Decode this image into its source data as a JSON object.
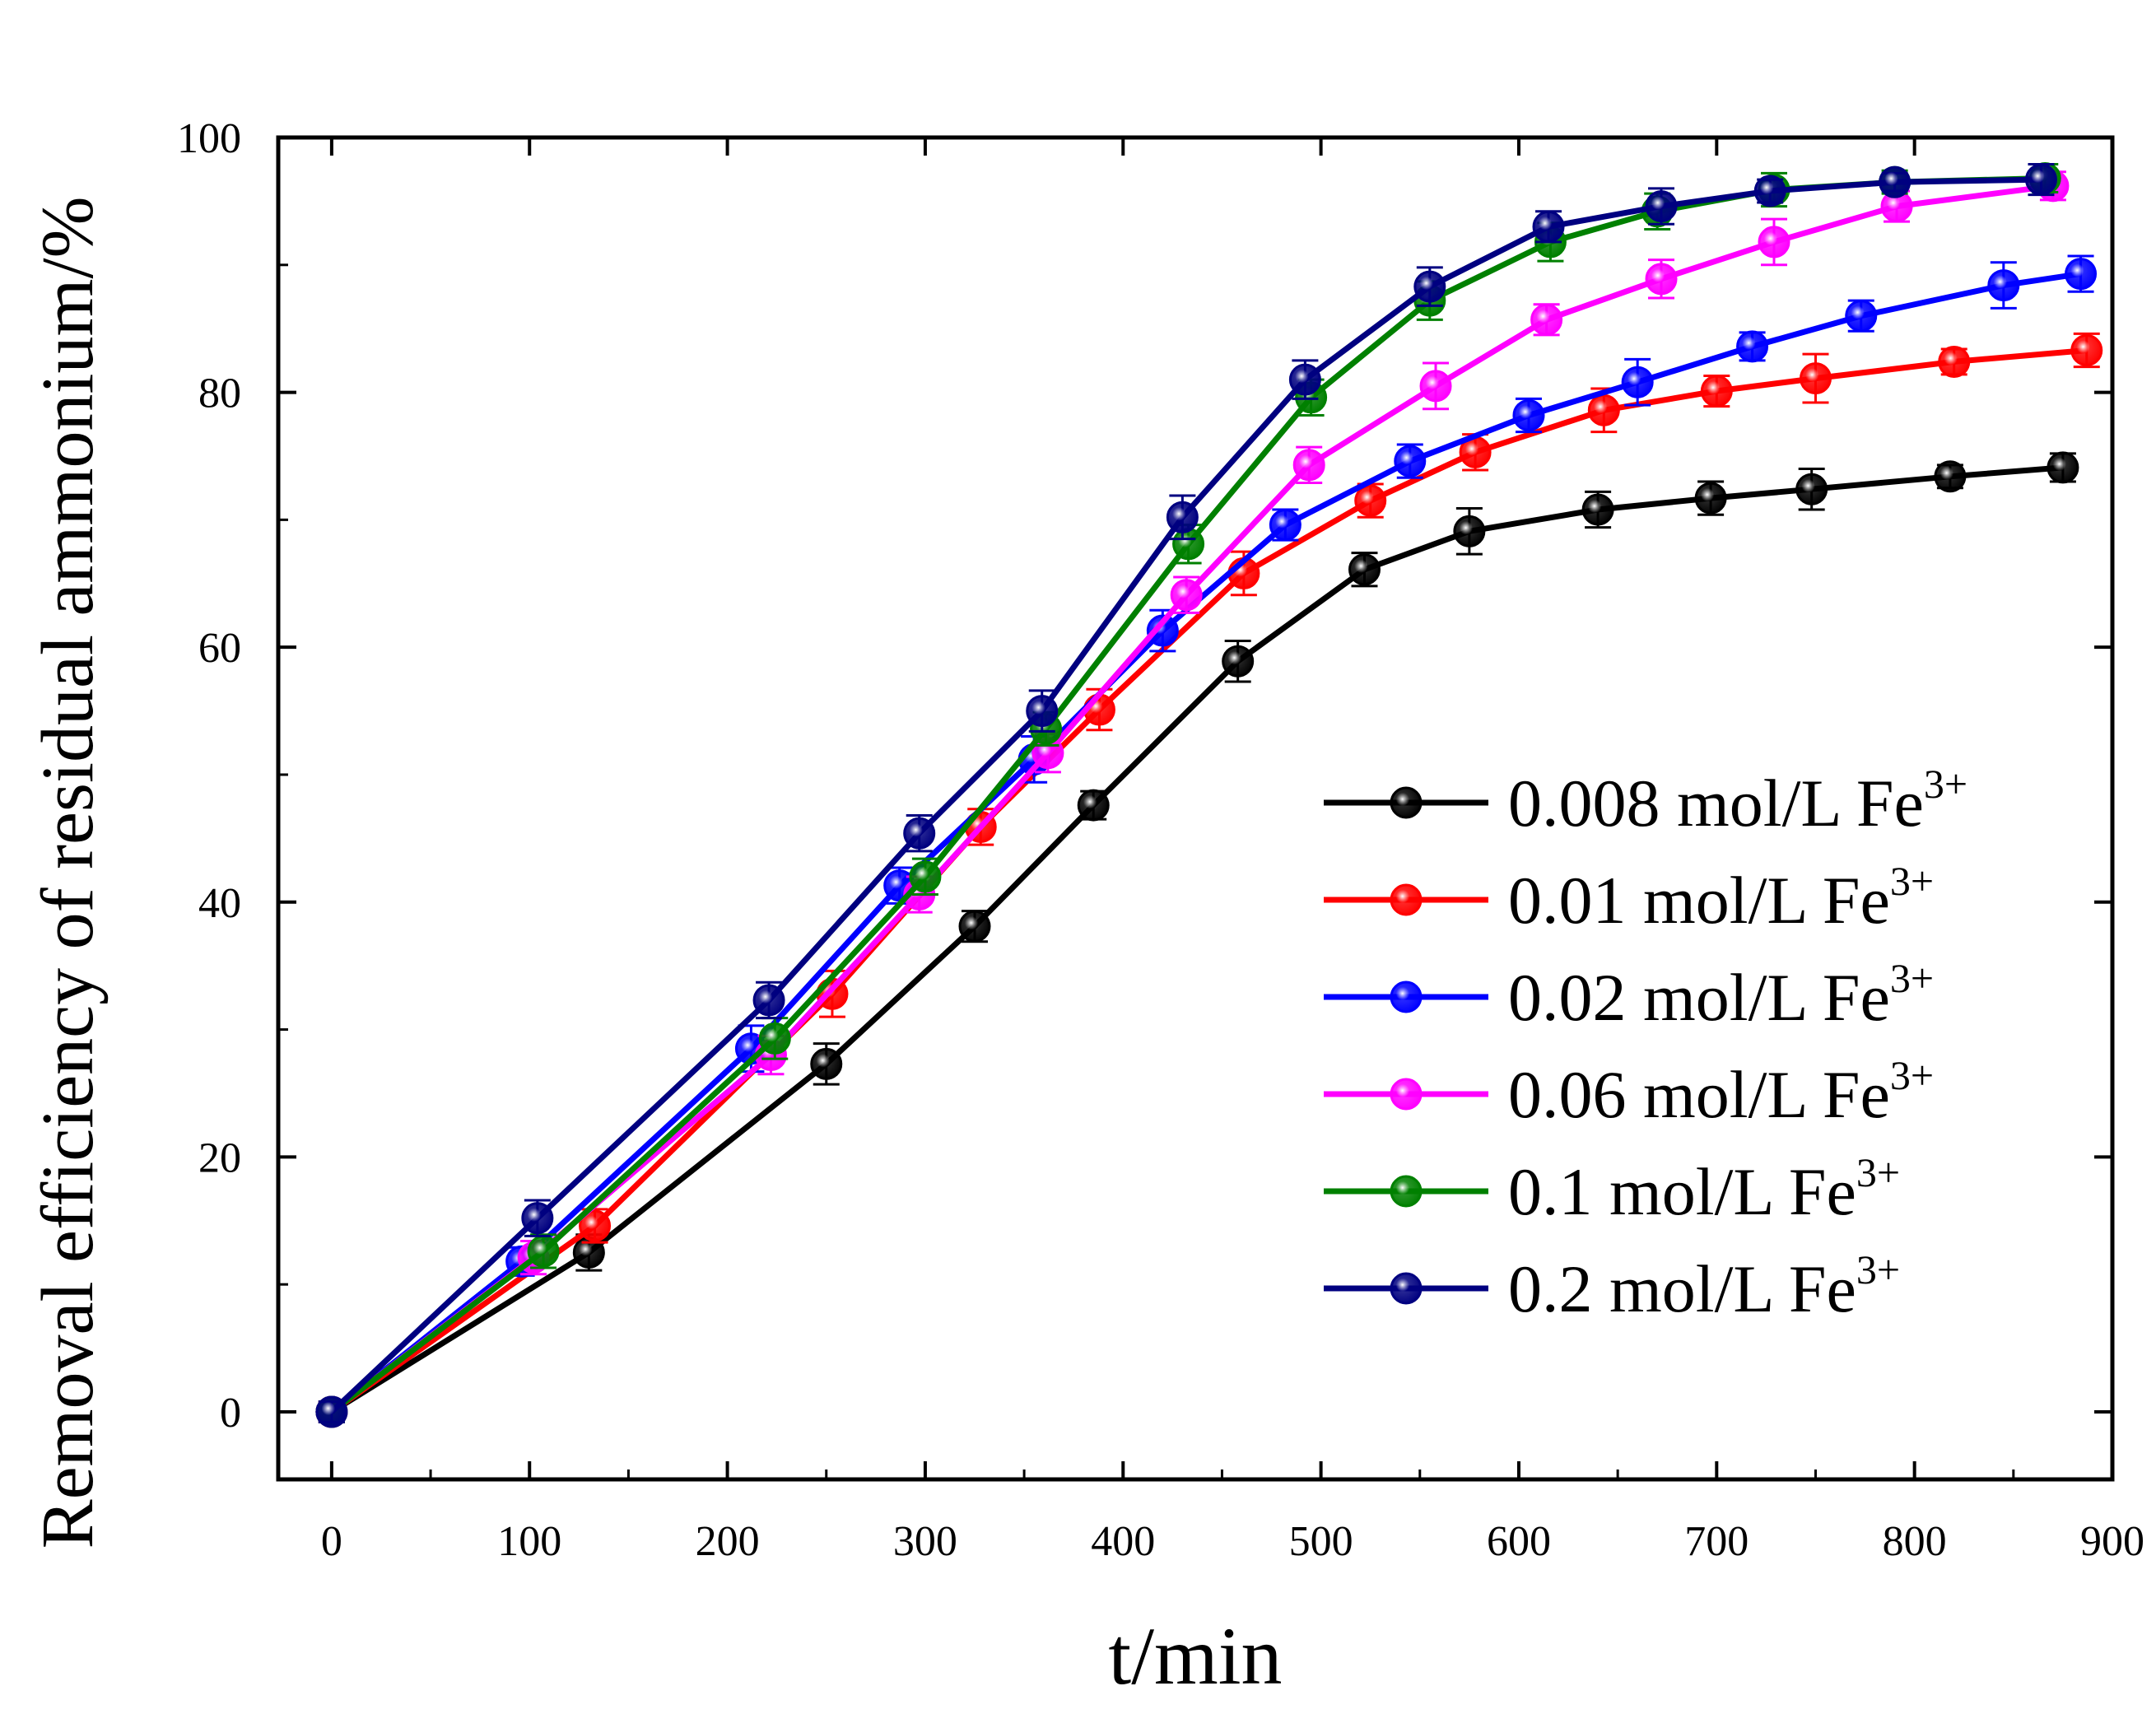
{
  "chart_data": {
    "type": "line",
    "xlabel": "t/min",
    "ylabel": "Removal efficiency of residual ammonium/%",
    "xlim": [
      -27,
      900
    ],
    "ylim": [
      -5.3,
      100
    ],
    "xticks": [
      0,
      100,
      200,
      300,
      400,
      500,
      600,
      700,
      800,
      900
    ],
    "yticks": [
      0,
      20,
      40,
      60,
      80,
      100
    ],
    "xtick_labels": [
      "0",
      "100",
      "200",
      "300",
      "400",
      "500",
      "600",
      "700",
      "800",
      "900"
    ],
    "ytick_labels": [
      "0",
      "20",
      "40",
      "60",
      "80",
      "100"
    ],
    "legend_position": "center-right",
    "series": [
      {
        "name": "0.008 mol/L Fe",
        "sup": "3+",
        "color": "#000000",
        "x": [
          0,
          130,
          250,
          325,
          385,
          458,
          522,
          575,
          640,
          697,
          748,
          818,
          875
        ],
        "y": [
          0,
          12.5,
          27.3,
          38.1,
          47.6,
          58.9,
          66.1,
          69.1,
          70.8,
          71.7,
          72.4,
          73.4,
          74.1
        ],
        "err": [
          0.8,
          1.4,
          1.6,
          1.2,
          1.1,
          1.6,
          1.3,
          1.8,
          1.4,
          1.3,
          1.6,
          0.9,
          1.1
        ]
      },
      {
        "name": "0.01 mol/L Fe",
        "sup": "3+",
        "color": "#ff0000",
        "x": [
          0,
          133,
          253,
          328,
          388,
          461,
          525,
          578,
          643,
          700,
          750,
          820,
          887
        ],
        "y": [
          0,
          14.6,
          32.8,
          45.9,
          55.1,
          65.8,
          71.5,
          75.3,
          78.6,
          80.1,
          81.1,
          82.4,
          83.3
        ],
        "err": [
          0.8,
          1.3,
          1.8,
          1.4,
          1.6,
          1.7,
          1.3,
          1.4,
          1.7,
          1.2,
          1.9,
          1.0,
          1.3
        ]
      },
      {
        "name": "0.02 mol/L Fe",
        "sup": "3+",
        "color": "#0000ff",
        "x": [
          0,
          96,
          212,
          287,
          355,
          420,
          482,
          545,
          605,
          660,
          718,
          773,
          845,
          884
        ],
        "y": [
          0,
          11.8,
          28.5,
          41.3,
          51.2,
          61.3,
          69.6,
          74.6,
          78.2,
          80.8,
          83.6,
          86.0,
          88.4,
          89.3
        ],
        "err": [
          0.8,
          1.1,
          1.8,
          1.4,
          1.8,
          1.6,
          1.2,
          1.3,
          1.3,
          1.8,
          1.1,
          1.2,
          1.8,
          1.4
        ]
      },
      {
        "name": "0.06 mol/L Fe",
        "sup": "3+",
        "color": "#ff00ff",
        "x": [
          0,
          102,
          222,
          297,
          362,
          432,
          494,
          558,
          614,
          672,
          729,
          791,
          870
        ],
        "y": [
          0,
          12.1,
          28.0,
          40.6,
          51.7,
          64.1,
          74.3,
          80.5,
          85.7,
          88.9,
          91.8,
          94.6,
          96.2
        ],
        "err": [
          0.8,
          1.3,
          1.5,
          1.4,
          1.5,
          1.4,
          1.4,
          1.8,
          1.2,
          1.5,
          1.8,
          1.2,
          1.1
        ]
      },
      {
        "name": "0.1 mol/L Fe",
        "sup": "3+",
        "color": "#008000",
        "x": [
          0,
          107,
          224,
          300,
          361,
          433,
          495,
          555,
          616,
          670,
          729,
          790,
          866
        ],
        "y": [
          0,
          12.6,
          29.3,
          42.0,
          53.6,
          68.1,
          79.6,
          87.2,
          91.8,
          94.2,
          95.9,
          96.5,
          96.8
        ],
        "err": [
          0.8,
          1.3,
          1.6,
          1.4,
          1.3,
          1.5,
          1.4,
          1.5,
          1.5,
          1.4,
          1.3,
          0.9,
          1.1
        ]
      },
      {
        "name": "0.2 mol/L Fe",
        "sup": "3+",
        "color": "#000080",
        "x": [
          0,
          104,
          221,
          297,
          359,
          430,
          492,
          555,
          615,
          672,
          727,
          790,
          864
        ],
        "y": [
          0,
          15.2,
          32.3,
          45.4,
          55.0,
          70.2,
          81.0,
          88.3,
          93.0,
          94.6,
          95.8,
          96.5,
          96.7
        ],
        "err": [
          0.8,
          1.4,
          1.4,
          1.4,
          1.6,
          1.7,
          1.5,
          1.5,
          1.2,
          1.4,
          0.9,
          0.7,
          1.2
        ]
      }
    ]
  }
}
